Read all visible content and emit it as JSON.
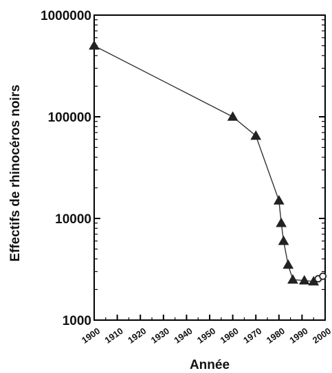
{
  "chart_data": {
    "type": "line",
    "xlabel": "Année",
    "ylabel": "Effectifs de rhinocéros noirs",
    "y_scale": "log",
    "xlim": [
      1900,
      2000
    ],
    "ylim": [
      1000,
      1000000
    ],
    "x_ticks": [
      1900,
      1910,
      1920,
      1930,
      1940,
      1950,
      1960,
      1970,
      1980,
      1990,
      2000
    ],
    "x_tick_labels": [
      "1900",
      "1910",
      "1920",
      "1930",
      "1940",
      "1950",
      "1960",
      "1970",
      "1980",
      "1990",
      "2000"
    ],
    "y_ticks": [
      1000,
      10000,
      100000,
      1000000
    ],
    "y_tick_labels": [
      "1000",
      "10000",
      "100000",
      "1000000"
    ],
    "grid": false,
    "colors": {
      "line": "#333333",
      "marker": "#222222",
      "axis": "#000000"
    },
    "series": [
      {
        "marker": "triangle",
        "x": [
          1900,
          1960,
          1970,
          1980,
          1981,
          1982,
          1984,
          1986,
          1991,
          1995
        ],
        "y": [
          500000,
          100000,
          65000,
          15000,
          9000,
          6000,
          3500,
          2500,
          2450,
          2400
        ]
      },
      {
        "marker": "circle-open",
        "x": [
          1997,
          1999
        ],
        "y": [
          2550,
          2700
        ]
      }
    ]
  }
}
